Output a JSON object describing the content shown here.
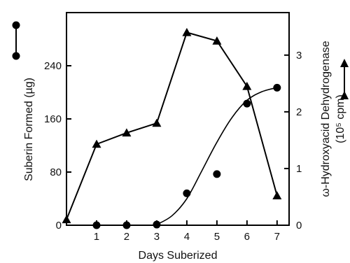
{
  "chart_data": {
    "type": "line",
    "xlabel": "Days Suberized",
    "ylabel_left": "Suberin Formed (µg)",
    "ylabel_right": "ω-Hydroxyacid Dehydrogenase",
    "ylabel_right_unit": "(10⁵ cpm)",
    "x_ticks": [
      "1",
      "2",
      "3",
      "4",
      "5",
      "6",
      "7"
    ],
    "left_ticks": [
      "0",
      "80",
      "160",
      "240"
    ],
    "right_ticks": [
      "0",
      "1",
      "2",
      "3"
    ],
    "xlim": [
      0,
      7.4
    ],
    "ylim_left": [
      0,
      320
    ],
    "ylim_right": [
      0,
      3.75
    ],
    "grid": false,
    "series": [
      {
        "axis": "left",
        "marker": "circle",
        "connected": false,
        "x": [
          1,
          2,
          3,
          4,
          5,
          6,
          7
        ],
        "y": [
          0,
          0,
          1,
          48,
          77,
          183,
          207
        ]
      },
      {
        "axis": "right",
        "marker": "triangle",
        "connected": true,
        "x": [
          0,
          1,
          2,
          3,
          4,
          5,
          6,
          7
        ],
        "y": [
          0.1,
          1.43,
          1.63,
          1.8,
          3.4,
          3.25,
          2.45,
          0.52
        ]
      }
    ],
    "fitted_curve": {
      "axis": "left",
      "x": [
        3,
        3.5,
        4,
        4.5,
        5,
        5.5,
        6,
        6.5,
        7
      ],
      "y": [
        1,
        14,
        40,
        82,
        125,
        162,
        188,
        201,
        207
      ]
    },
    "legend_markers": [
      "circle-line",
      "triangle-line"
    ]
  }
}
